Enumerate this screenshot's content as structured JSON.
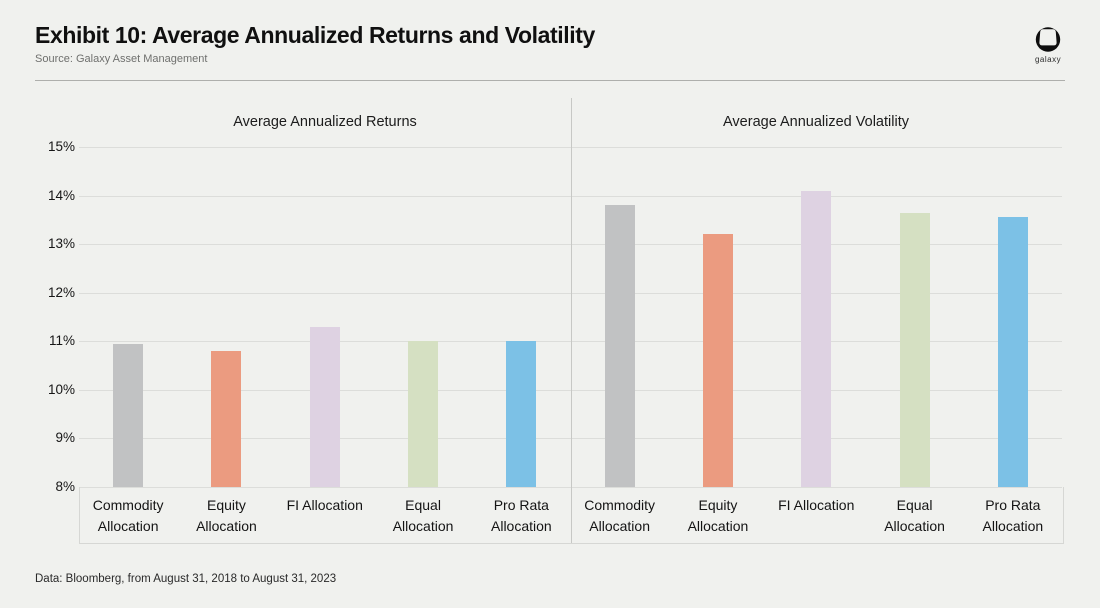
{
  "header": {
    "title": "Exhibit 10: Average Annualized Returns and Volatility",
    "source": "Source: Galaxy Asset Management",
    "logo_wordmark": "galaxy"
  },
  "chart_data": {
    "type": "bar",
    "layout": "two side-by-side panels sharing one y-axis",
    "categories": [
      "Commodity Allocation",
      "Equity Allocation",
      "FI Allocation",
      "Equal Allocation",
      "Pro Rata Allocation"
    ],
    "category_label_lines": [
      [
        "Commodity",
        "Allocation"
      ],
      [
        "Equity",
        "Allocation"
      ],
      [
        "FI Allocation"
      ],
      [
        "Equal",
        "Allocation"
      ],
      [
        "Pro Rata",
        "Allocation"
      ]
    ],
    "series": [
      {
        "name": "Average Annualized Returns",
        "values": [
          10.95,
          10.8,
          11.3,
          11.0,
          11.0
        ]
      },
      {
        "name": "Average Annualized Volatility",
        "values": [
          13.8,
          13.2,
          14.1,
          13.65,
          13.55
        ]
      }
    ],
    "unit": "%",
    "y_axis": {
      "min": 8,
      "max": 15,
      "step": 1,
      "tick_labels": [
        "15%",
        "14%",
        "13%",
        "12%",
        "11%",
        "10%",
        "9%",
        "8%"
      ]
    },
    "grid": true,
    "bar_colors": [
      "#c1c2c3",
      "#eb9b80",
      "#ded2e2",
      "#d5e0c2",
      "#7cc1e6"
    ]
  },
  "footer": {
    "note": "Data: Bloomberg, from August 31, 2018 to August 31, 2023"
  }
}
